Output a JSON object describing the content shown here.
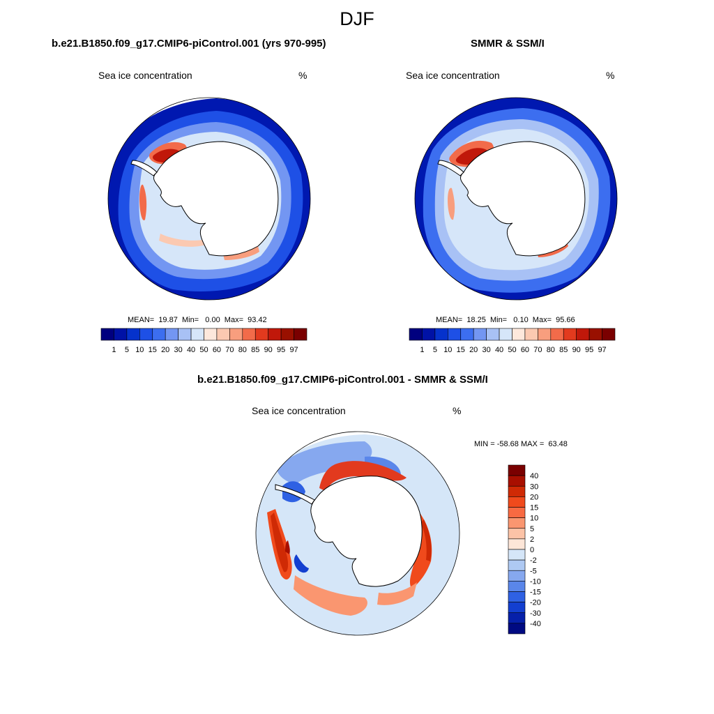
{
  "main_title": "DJF",
  "panels": [
    {
      "title": "b.e21.B1850.f09_g17.CMIP6-piControl.001 (yrs 970-995)",
      "variable": "Sea ice concentration",
      "units": "%",
      "stats": "MEAN=  19.87  Min=   0.00  Max=  93.42"
    },
    {
      "title": "SMMR & SSM/I",
      "variable": "Sea ice concentration",
      "units": "%",
      "stats": "MEAN=  18.25  Min=   0.10  Max=  95.66"
    },
    {
      "title": "b.e21.B1850.f09_g17.CMIP6-piControl.001 - SMMR & SSM/I",
      "variable": "Sea ice concentration",
      "units": "%",
      "stats": "MIN = -58.68 MAX =  63.48"
    }
  ],
  "colorbar_conc": {
    "labels": [
      "1",
      "5",
      "10",
      "15",
      "20",
      "30",
      "40",
      "50",
      "60",
      "70",
      "80",
      "85",
      "90",
      "95",
      "97"
    ],
    "colors": [
      "#00007f",
      "#0012a6",
      "#0532cc",
      "#1e50e6",
      "#3c6ef0",
      "#7396f2",
      "#a8c1f5",
      "#d6e6f9",
      "#fde8dc",
      "#fbc9b1",
      "#f89e7e",
      "#f26b4a",
      "#e23a1e",
      "#c0180a",
      "#991000",
      "#7a0000"
    ]
  },
  "colorbar_diff": {
    "labels": [
      "40",
      "30",
      "20",
      "15",
      "10",
      "5",
      "2",
      "0",
      "-2",
      "-5",
      "-10",
      "-15",
      "-20",
      "-30",
      "-40"
    ],
    "colors": [
      "#7a0000",
      "#a80f00",
      "#cf2a05",
      "#f04a1c",
      "#f86a42",
      "#fa9670",
      "#fcc3a7",
      "#fde6d8",
      "#d5e6f8",
      "#aec9f3",
      "#86a8ef",
      "#5a86ea",
      "#2f61e3",
      "#133fd0",
      "#0620aa",
      "#000a82"
    ]
  }
}
